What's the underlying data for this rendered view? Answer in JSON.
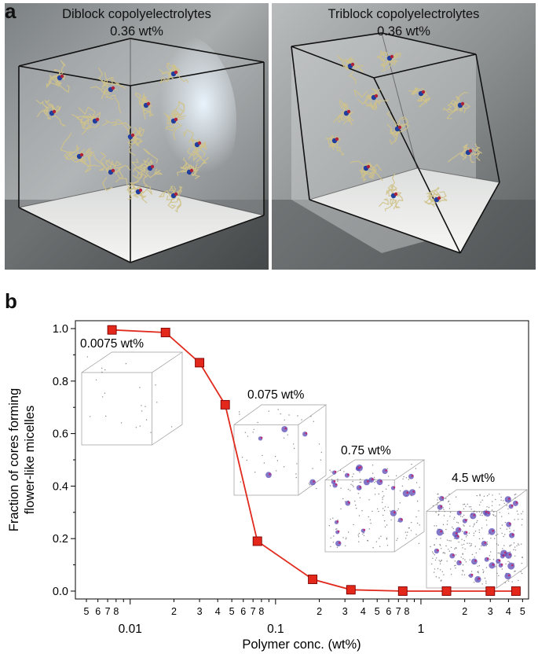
{
  "panel_a": {
    "label": "a",
    "left": {
      "title": "Diblock copolyelectrolytes",
      "subtitle": "0.36 wt%"
    },
    "right": {
      "title": "Triblock copolyelectrolytes",
      "subtitle": "0.36 wt%"
    }
  },
  "panel_b": {
    "label": "b"
  },
  "colors": {
    "line": "#e02a1e",
    "marker_fill": "#e3271b",
    "marker_edge": "#7a0000",
    "strand": "#cfc28a"
  },
  "chart_data": {
    "type": "line",
    "xscale": "log",
    "xlim": [
      0.0042,
      5.5
    ],
    "ylim": [
      -0.03,
      1.03
    ],
    "xlabel": "Polymer conc. (wt%)",
    "ylabel_lines": [
      "Fraction of cores forming",
      "flower-like micelles"
    ],
    "yticks": [
      "0.0",
      "0.2",
      "0.4",
      "0.6",
      "0.8",
      "1.0"
    ],
    "xtick_major_labels": [
      "0.01",
      "0.1",
      "1"
    ],
    "xtick_minor_labels": [
      "5",
      "6",
      "7",
      "8",
      "2",
      "3",
      "4",
      "5",
      "6",
      "7",
      "8",
      "2",
      "3",
      "4",
      "5",
      "6",
      "7",
      "8",
      "2",
      "3",
      "4",
      "5"
    ],
    "grid": false,
    "series": [
      {
        "x": [
          0.0075,
          0.0175,
          0.03,
          0.045,
          0.075,
          0.18,
          0.33,
          0.75,
          1.5,
          3.0,
          4.5
        ],
        "y": [
          0.995,
          0.985,
          0.87,
          0.71,
          0.19,
          0.045,
          0.005,
          0.0,
          0.0,
          0.0,
          0.0
        ]
      }
    ],
    "annotations": [
      "0.0075 wt%",
      "0.075 wt%",
      "0.75 wt%",
      "4.5 wt%"
    ]
  }
}
